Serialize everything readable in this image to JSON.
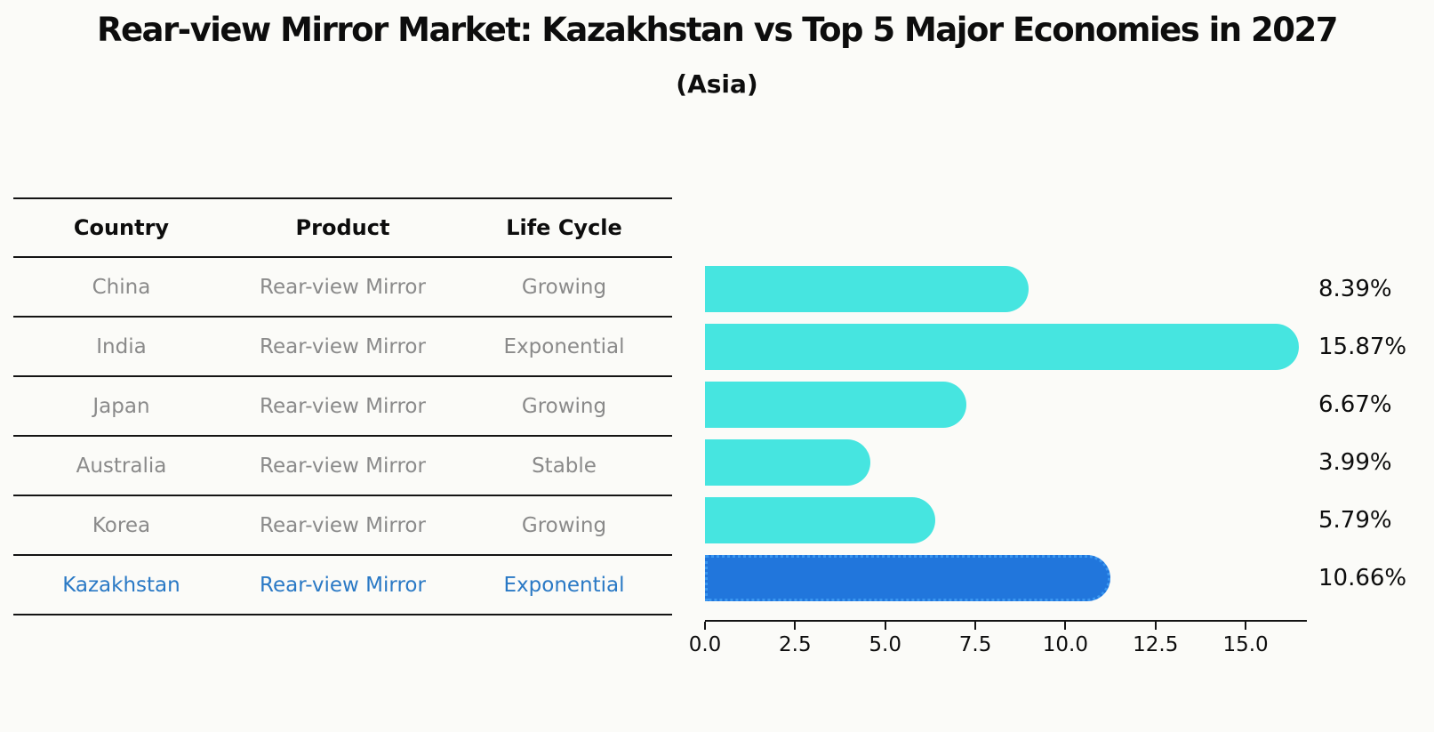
{
  "title": "Rear-view Mirror Market: Kazakhstan vs Top 5 Major Economies in 2027",
  "subtitle": "(Asia)",
  "table": {
    "headers": {
      "country": "Country",
      "product": "Product",
      "life_cycle": "Life Cycle"
    },
    "rows": [
      {
        "country": "China",
        "product": "Rear-view Mirror",
        "life_cycle": "Growing",
        "highlight": false
      },
      {
        "country": "India",
        "product": "Rear-view Mirror",
        "life_cycle": "Exponential",
        "highlight": false
      },
      {
        "country": "Japan",
        "product": "Rear-view Mirror",
        "life_cycle": "Growing",
        "highlight": false
      },
      {
        "country": "Australia",
        "product": "Rear-view Mirror",
        "life_cycle": "Stable",
        "highlight": false
      },
      {
        "country": "Korea",
        "product": "Rear-view Mirror",
        "life_cycle": "Growing",
        "highlight": false
      },
      {
        "country": "Kazakhstan",
        "product": "Rear-view Mirror",
        "life_cycle": "Exponential",
        "highlight": true
      }
    ]
  },
  "chart_data": {
    "type": "bar",
    "orientation": "horizontal",
    "title": "Rear-view Mirror Market: Kazakhstan vs Top 5 Major Economies in 2027",
    "subtitle": "(Asia)",
    "categories": [
      "China",
      "India",
      "Japan",
      "Australia",
      "Korea",
      "Kazakhstan"
    ],
    "values": [
      8.39,
      15.87,
      6.67,
      3.99,
      5.79,
      10.66
    ],
    "value_labels": [
      "8.39%",
      "15.87%",
      "6.67%",
      "3.99%",
      "5.79%",
      "10.66%"
    ],
    "highlight_index": 5,
    "x_ticks": [
      "0.0",
      "2.5",
      "5.0",
      "7.5",
      "10.0",
      "12.5",
      "15.0"
    ],
    "xlim": [
      0,
      16.7
    ],
    "grid": false,
    "legend": "none",
    "bar_color": "#46e5e0",
    "highlight_color": "#2176dc",
    "highlight_edge_color": "#3b97f0",
    "highlight_text_color": "#2a79c5"
  }
}
